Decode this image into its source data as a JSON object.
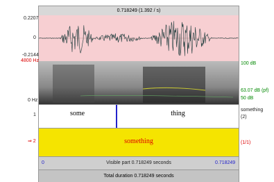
{
  "header": {
    "title": "0.718249 (1.392 / s)"
  },
  "waveform": {
    "max_label": "0.2207",
    "zero_label": "0",
    "min_label": "-0.2144"
  },
  "spectrogram": {
    "top_label": "4800 Hz",
    "bottom_label": "0 Hz",
    "right_top": "100 dB",
    "right_mid": "63.07 dB (pf)",
    "right_bottom": "50 dB"
  },
  "tiers": [
    {
      "number": "1",
      "intervals": [
        "some",
        "thing"
      ],
      "name": "something",
      "count": "(2)"
    },
    {
      "number": "⇒ 2",
      "intervals": [
        "something"
      ],
      "count": "(1/1)"
    }
  ],
  "footer": {
    "start": "0",
    "visible": "Visible part 0.718249 seconds",
    "end": "0.718249",
    "total": "Total duration 0.718249 seconds"
  }
}
